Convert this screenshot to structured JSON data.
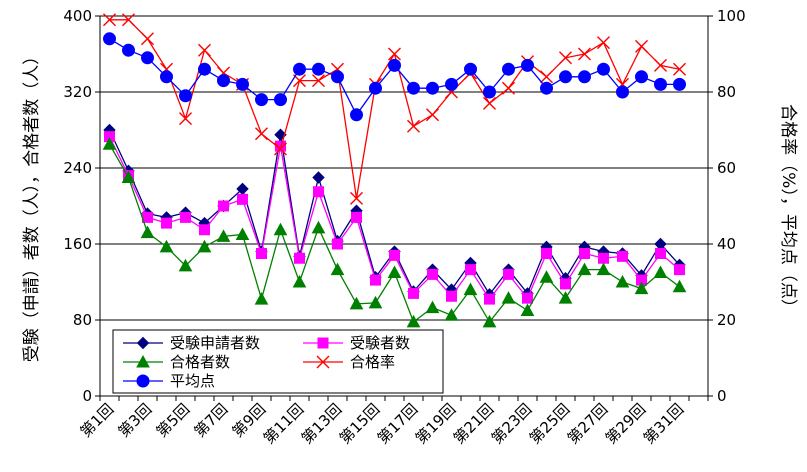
{
  "chart_data": {
    "type": "line",
    "title": "",
    "ylabel_left": "受験（申請）者数（人），合格者数（人）",
    "ylabel_right": "合格率（%），平均点（点）",
    "ylim_left": [
      0,
      400
    ],
    "yticks_left": [
      "0",
      "80",
      "160",
      "240",
      "320",
      "400"
    ],
    "ylim_right": [
      0,
      100
    ],
    "yticks_right": [
      "0",
      "20",
      "40",
      "60",
      "80",
      "100"
    ],
    "grid": "horizontal lines at every y tick",
    "legend_position": "bottom-left, inside plot area",
    "x_ticks_shown": [
      "第1回",
      "第3回",
      "第5回",
      "第7回",
      "第9回",
      "第11回",
      "第13回",
      "第15回",
      "第17回",
      "第19回",
      "第21回",
      "第23回",
      "第25回",
      "第27回",
      "第29回",
      "第31回"
    ],
    "x": [
      1,
      2,
      3,
      4,
      5,
      6,
      7,
      8,
      9,
      10,
      11,
      12,
      13,
      14,
      15,
      16,
      17,
      18,
      19,
      20,
      21,
      22,
      23,
      24,
      25,
      26,
      27,
      28,
      29,
      30,
      31,
      32
    ],
    "series": [
      {
        "name": "受験申請者数",
        "axis": "left",
        "color": "#000080",
        "marker": "diamond",
        "values": [
          280,
          237,
          192,
          188,
          193,
          182,
          200,
          218,
          152,
          275,
          147,
          230,
          163,
          195,
          125,
          152,
          110,
          133,
          112,
          140,
          107,
          133,
          108,
          157,
          124,
          157,
          152,
          150,
          127,
          160,
          138,
          null
        ]
      },
      {
        "name": "受験者数",
        "axis": "left",
        "color": "#ff00ff",
        "marker": "square",
        "values": [
          273,
          232,
          188,
          182,
          188,
          175,
          200,
          207,
          150,
          263,
          145,
          215,
          160,
          188,
          122,
          148,
          108,
          128,
          105,
          133,
          102,
          128,
          103,
          150,
          118,
          150,
          145,
          147,
          122,
          150,
          133,
          null
        ]
      },
      {
        "name": "合格者数",
        "axis": "left",
        "color": "#008000",
        "marker": "triangle",
        "values": [
          265,
          230,
          172,
          157,
          137,
          157,
          168,
          170,
          102,
          175,
          120,
          177,
          133,
          97,
          98,
          130,
          78,
          93,
          85,
          112,
          78,
          103,
          90,
          125,
          103,
          133,
          133,
          120,
          113,
          130,
          115,
          null
        ]
      },
      {
        "name": "合格率",
        "axis": "right",
        "color": "#ff0000",
        "marker": "x",
        "values": [
          99,
          99,
          94,
          86,
          73,
          91,
          85,
          82,
          69,
          65,
          83,
          83,
          86,
          52,
          82,
          90,
          71,
          74,
          80,
          85,
          77,
          81,
          88,
          84,
          89,
          90,
          93,
          82,
          92,
          87,
          86,
          null
        ]
      },
      {
        "name": "平均点",
        "axis": "right",
        "color": "#0000ff",
        "marker": "circle",
        "values": [
          94,
          91,
          89,
          84,
          79,
          86,
          83,
          82,
          78,
          78,
          86,
          86,
          84,
          74,
          81,
          87,
          81,
          81,
          82,
          86,
          80,
          86,
          87,
          81,
          84,
          84,
          86,
          80,
          84,
          82,
          82,
          null
        ]
      }
    ]
  }
}
